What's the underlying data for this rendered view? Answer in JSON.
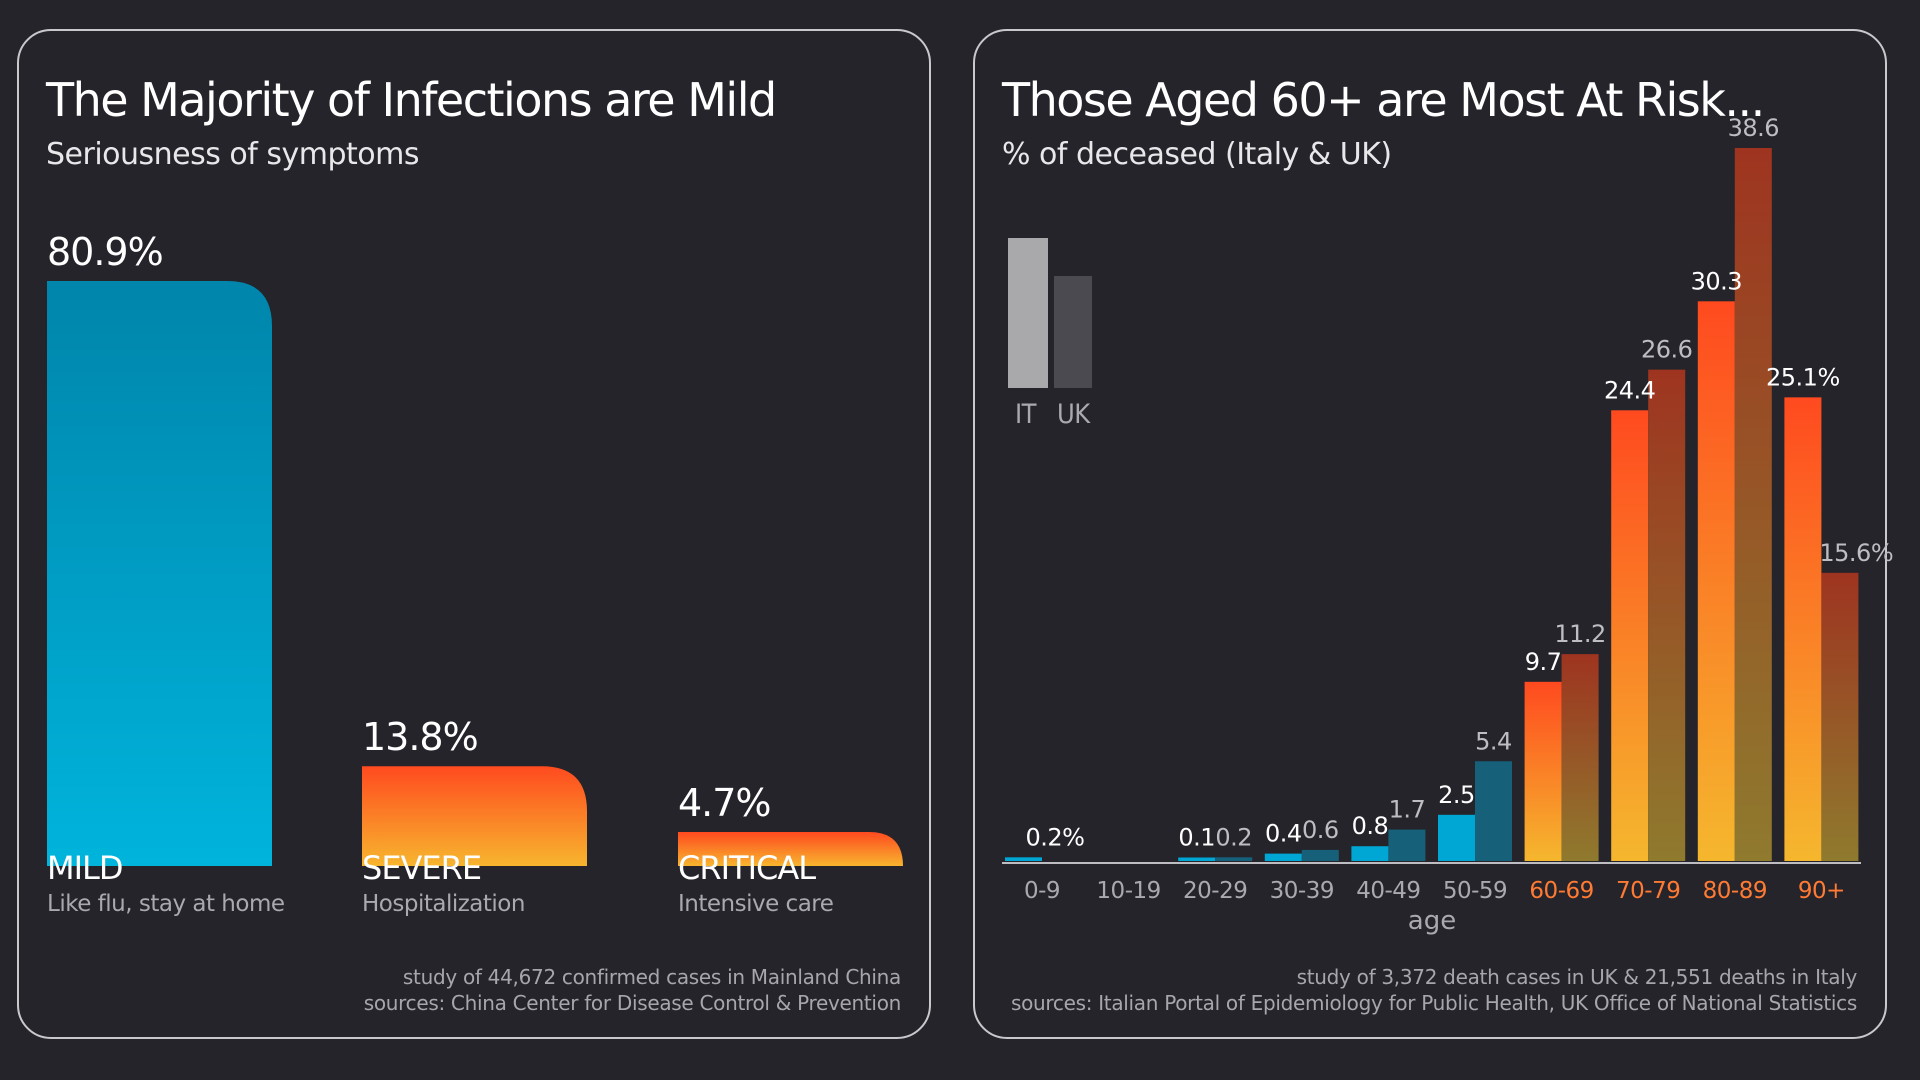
{
  "colors": {
    "background": "#25242b",
    "mild_top": "#0085ab",
    "mild_bottom": "#00b4dc",
    "severe_top": "#ff4a1f",
    "severe_bottom": "#f7b52e",
    "it_bar_top": "#ff4a1f",
    "it_bar_bottom": "#f5b72e",
    "uk_bar_top": "#9e3420",
    "uk_bar_bottom": "#8f7a2e",
    "young_it": "#00a6d4",
    "young_uk": "#16607a",
    "legend_it": "#a9a9ab",
    "legend_uk": "#4a4a50",
    "age_label_young": "#a9a9ae",
    "age_label_old": "#ff7a33"
  },
  "left": {
    "title": "The Majority of Infections are Mild",
    "subtitle": "Seriousness of symptoms",
    "note_line1": "study of 44,672 confirmed cases in Mainland China",
    "note_line2": "sources: China Center for Disease Control & Prevention",
    "chart_data": {
      "type": "bar",
      "categories": [
        "MILD",
        "SEVERE",
        "CRITICAL"
      ],
      "descriptions": [
        "Like flu, stay at home",
        "Hospitalization",
        "Intensive care"
      ],
      "values": [
        80.9,
        13.8,
        4.7
      ],
      "value_labels": [
        "80.9%",
        "13.8%",
        "4.7%"
      ],
      "ylim": [
        0,
        80.9
      ]
    }
  },
  "right": {
    "title": "Those Aged 60+ are Most At Risk...",
    "subtitle": "% of deceased (Italy & UK)",
    "legend": {
      "it": "IT",
      "uk": "UK"
    },
    "note_line1": "study of 3,372 death cases in UK & 21,551 deaths in Italy",
    "note_line2": "sources: Italian Portal of Epidemiology for Public Health, UK Office of National Statistics",
    "chart_data": {
      "type": "bar",
      "categories": [
        "0-9",
        "10-19",
        "20-29",
        "30-39",
        "40-49",
        "50-59",
        "60-69",
        "70-79",
        "80-89",
        "90+"
      ],
      "xlabel": "age",
      "ylim": [
        0,
        38.6
      ],
      "series": [
        {
          "name": "IT",
          "values": [
            0.2,
            0,
            0.1,
            0.4,
            0.8,
            2.5,
            9.7,
            24.4,
            30.3,
            25.1
          ],
          "labels": [
            "0.2%",
            "",
            "0.1",
            "0.4",
            "0.8",
            "2.5",
            "9.7",
            "24.4",
            "30.3",
            "25.1%"
          ]
        },
        {
          "name": "UK",
          "values": [
            0,
            0,
            0.2,
            0.6,
            1.7,
            5.4,
            11.2,
            26.6,
            38.6,
            15.6
          ],
          "labels": [
            "",
            "",
            "0.2",
            "0.6",
            "1.7",
            "5.4",
            "11.2",
            "26.6",
            "38.6",
            "15.6%"
          ]
        }
      ]
    }
  }
}
